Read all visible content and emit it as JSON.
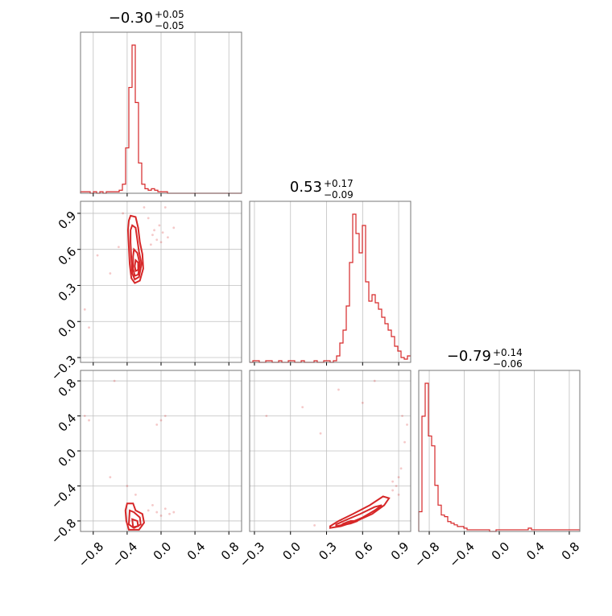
{
  "chart_data": {
    "type": "corner",
    "color": "#d62728",
    "parameters": [
      {
        "title_value": "−0.30",
        "title_plus": "+0.05",
        "title_minus": "−0.05",
        "range": [
          -0.95,
          0.95
        ],
        "ticks": [
          -0.8,
          -0.4,
          0.0,
          0.4,
          0.8
        ],
        "tick_labels": [
          "−0.8",
          "−0.4",
          "0.0",
          "0.4",
          "0.8"
        ],
        "hist_edges_start": -0.95,
        "hist_bin_width": 0.038,
        "hist_counts": [
          1,
          1,
          1,
          0,
          1,
          0,
          1,
          0,
          1,
          1,
          1,
          1,
          2,
          6,
          30,
          70,
          98,
          60,
          20,
          6,
          3,
          2,
          3,
          2,
          1,
          1,
          1,
          0,
          0,
          0,
          0,
          0,
          0,
          0,
          0,
          0,
          0,
          0,
          0,
          0,
          0,
          0,
          0,
          0,
          0,
          0,
          0,
          0,
          0,
          0
        ]
      },
      {
        "title_value": "0.53",
        "title_plus": "+0.17",
        "title_minus": "−0.09",
        "range": [
          -0.34,
          1.0
        ],
        "ticks": [
          -0.3,
          0.0,
          0.3,
          0.6,
          0.9
        ],
        "tick_labels": [
          "−0.3",
          "0.0",
          "0.3",
          "0.6",
          "0.9"
        ],
        "hist_edges_start": -0.34,
        "hist_bin_width": 0.0268,
        "hist_counts": [
          0,
          1,
          1,
          0,
          0,
          1,
          1,
          0,
          0,
          1,
          0,
          0,
          1,
          1,
          0,
          0,
          1,
          0,
          0,
          0,
          1,
          0,
          0,
          1,
          1,
          0,
          1,
          4,
          12,
          20,
          35,
          62,
          92,
          80,
          68,
          85,
          50,
          38,
          42,
          37,
          33,
          28,
          24,
          20,
          16,
          10,
          7,
          3,
          2,
          4
        ]
      },
      {
        "title_value": "−0.79",
        "title_plus": "+0.14",
        "title_minus": "−0.06",
        "range": [
          -0.92,
          0.92
        ],
        "ticks": [
          -0.8,
          -0.4,
          0.0,
          0.4,
          0.8
        ],
        "tick_labels": [
          "−0.8",
          "−0.4",
          "0.0",
          "0.4",
          "0.8"
        ],
        "hist_edges_start": -0.92,
        "hist_bin_width": 0.0368,
        "hist_counts": [
          12,
          70,
          90,
          58,
          52,
          28,
          16,
          10,
          9,
          6,
          5,
          4,
          3,
          3,
          2,
          1,
          1,
          1,
          1,
          1,
          1,
          1,
          0,
          0,
          1,
          1,
          1,
          1,
          1,
          1,
          1,
          1,
          1,
          1,
          2,
          1,
          1,
          1,
          1,
          1,
          1,
          1,
          1,
          1,
          1,
          1,
          1,
          1,
          1,
          1
        ]
      }
    ],
    "pairs": [
      {
        "x_param": 0,
        "y_param": 1,
        "contour_levels": [
          [
            [
              -0.36,
              0.88
            ],
            [
              -0.3,
              0.87
            ],
            [
              -0.27,
              0.78
            ],
            [
              -0.25,
              0.66
            ],
            [
              -0.22,
              0.56
            ],
            [
              -0.21,
              0.44
            ],
            [
              -0.25,
              0.34
            ],
            [
              -0.31,
              0.32
            ],
            [
              -0.35,
              0.36
            ],
            [
              -0.37,
              0.48
            ],
            [
              -0.38,
              0.62
            ],
            [
              -0.39,
              0.76
            ],
            [
              -0.38,
              0.84
            ]
          ],
          [
            [
              -0.34,
              0.8
            ],
            [
              -0.3,
              0.78
            ],
            [
              -0.28,
              0.68
            ],
            [
              -0.26,
              0.58
            ],
            [
              -0.23,
              0.48
            ],
            [
              -0.26,
              0.37
            ],
            [
              -0.31,
              0.35
            ],
            [
              -0.34,
              0.4
            ],
            [
              -0.35,
              0.52
            ],
            [
              -0.36,
              0.66
            ],
            [
              -0.36,
              0.76
            ]
          ],
          [
            [
              -0.32,
              0.6
            ],
            [
              -0.28,
              0.57
            ],
            [
              -0.25,
              0.48
            ],
            [
              -0.27,
              0.39
            ],
            [
              -0.31,
              0.38
            ],
            [
              -0.33,
              0.44
            ],
            [
              -0.33,
              0.54
            ]
          ],
          [
            [
              -0.3,
              0.51
            ],
            [
              -0.27,
              0.49
            ],
            [
              -0.27,
              0.43
            ],
            [
              -0.3,
              0.42
            ],
            [
              -0.31,
              0.46
            ]
          ]
        ],
        "points": [
          [
            -0.1,
            0.72
          ],
          [
            -0.05,
            0.68
          ],
          [
            0.02,
            0.74
          ],
          [
            -0.02,
            0.8
          ],
          [
            0.08,
            0.7
          ],
          [
            -0.15,
            0.86
          ],
          [
            -0.45,
            0.9
          ],
          [
            -0.6,
            0.4
          ],
          [
            -0.75,
            0.55
          ],
          [
            -0.9,
            0.1
          ],
          [
            -0.85,
            -0.05
          ],
          [
            -0.2,
            0.95
          ],
          [
            0.05,
            0.95
          ],
          [
            -0.12,
            0.64
          ],
          [
            0.0,
            0.66
          ],
          [
            -0.5,
            0.62
          ],
          [
            0.15,
            0.78
          ],
          [
            -0.08,
            0.76
          ]
        ]
      },
      {
        "x_param": 0,
        "y_param": 2,
        "contour_levels": [
          [
            [
              -0.4,
              -0.6
            ],
            [
              -0.33,
              -0.6
            ],
            [
              -0.3,
              -0.68
            ],
            [
              -0.22,
              -0.72
            ],
            [
              -0.2,
              -0.82
            ],
            [
              -0.26,
              -0.9
            ],
            [
              -0.38,
              -0.9
            ],
            [
              -0.41,
              -0.8
            ],
            [
              -0.42,
              -0.68
            ]
          ],
          [
            [
              -0.37,
              -0.68
            ],
            [
              -0.32,
              -0.7
            ],
            [
              -0.25,
              -0.76
            ],
            [
              -0.24,
              -0.84
            ],
            [
              -0.32,
              -0.88
            ],
            [
              -0.38,
              -0.84
            ]
          ],
          [
            [
              -0.34,
              -0.78
            ],
            [
              -0.28,
              -0.8
            ],
            [
              -0.27,
              -0.86
            ],
            [
              -0.33,
              -0.87
            ]
          ]
        ],
        "points": [
          [
            -0.05,
            -0.7
          ],
          [
            0.0,
            -0.74
          ],
          [
            0.05,
            -0.66
          ],
          [
            0.1,
            -0.72
          ],
          [
            -0.1,
            -0.62
          ],
          [
            0.0,
            0.35
          ],
          [
            -0.05,
            0.3
          ],
          [
            -0.6,
            -0.3
          ],
          [
            -0.85,
            0.35
          ],
          [
            -0.9,
            0.4
          ],
          [
            -0.4,
            -0.4
          ],
          [
            -0.55,
            0.8
          ],
          [
            0.05,
            0.4
          ],
          [
            -0.15,
            -0.68
          ],
          [
            0.15,
            -0.7
          ],
          [
            -0.3,
            -0.5
          ]
        ]
      },
      {
        "x_param": 1,
        "y_param": 2,
        "contour_levels": [
          [
            [
              0.33,
              -0.88
            ],
            [
              0.42,
              -0.86
            ],
            [
              0.55,
              -0.8
            ],
            [
              0.68,
              -0.72
            ],
            [
              0.78,
              -0.62
            ],
            [
              0.82,
              -0.54
            ],
            [
              0.77,
              -0.52
            ],
            [
              0.66,
              -0.62
            ],
            [
              0.52,
              -0.72
            ],
            [
              0.4,
              -0.8
            ],
            [
              0.33,
              -0.86
            ]
          ],
          [
            [
              0.38,
              -0.86
            ],
            [
              0.48,
              -0.83
            ],
            [
              0.6,
              -0.76
            ],
            [
              0.7,
              -0.68
            ],
            [
              0.76,
              -0.62
            ],
            [
              0.7,
              -0.64
            ],
            [
              0.58,
              -0.72
            ],
            [
              0.46,
              -0.79
            ],
            [
              0.38,
              -0.84
            ]
          ],
          [
            [
              0.42,
              -0.85
            ],
            [
              0.5,
              -0.83
            ],
            [
              0.56,
              -0.8
            ],
            [
              0.5,
              -0.8
            ],
            [
              0.44,
              -0.83
            ]
          ]
        ],
        "points": [
          [
            0.85,
            -0.45
          ],
          [
            0.88,
            -0.4
          ],
          [
            0.9,
            -0.3
          ],
          [
            0.92,
            -0.2
          ],
          [
            0.95,
            0.1
          ],
          [
            0.97,
            0.3
          ],
          [
            0.93,
            0.4
          ],
          [
            0.1,
            0.5
          ],
          [
            -0.2,
            0.4
          ],
          [
            0.25,
            0.2
          ],
          [
            0.6,
            0.55
          ],
          [
            0.85,
            -0.35
          ],
          [
            0.9,
            -0.5
          ],
          [
            0.2,
            -0.85
          ],
          [
            0.4,
            0.7
          ],
          [
            0.7,
            0.8
          ]
        ]
      }
    ]
  }
}
